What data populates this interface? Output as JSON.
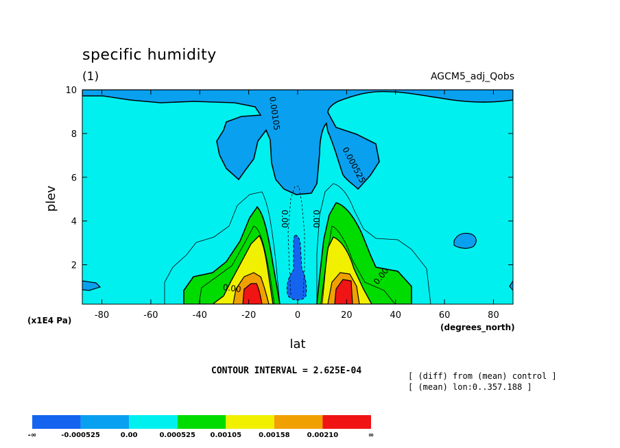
{
  "chart_data": {
    "type": "filled-contour",
    "title": "specific humidity",
    "subtitle": "(1)",
    "dataset": "AGCM5_adj_Qobs",
    "xlabel": "lat",
    "x_units": "(degrees_north)",
    "ylabel": "plev",
    "y_units": "(x1E4 Pa)",
    "xlim": [
      -88,
      88
    ],
    "ylim": [
      10,
      0.2
    ],
    "x_ticks": [
      -80,
      -60,
      -40,
      -20,
      0,
      20,
      40,
      60,
      80
    ],
    "y_ticks": [
      2,
      4,
      6,
      8,
      10
    ],
    "contour_interval_text": "CONTOUR INTERVAL = 2.625E-04",
    "notes": [
      "[ (diff) from (mean) control ]",
      "[ (mean) lon:0..357.188 ]"
    ],
    "contour_labels": [
      {
        "text": "0.00",
        "lat": -27,
        "plev": 0.8,
        "rot": 8
      },
      {
        "text": "0.00",
        "lat": 35,
        "plev": 1.4,
        "rot": -52
      },
      {
        "text": "0.00",
        "lat": -6.5,
        "plev": 4.1,
        "rot": 90
      },
      {
        "text": "0.00",
        "lat": 6.5,
        "plev": 4.1,
        "rot": 90
      },
      {
        "text": "0.000525",
        "lat": 22,
        "plev": 6.5,
        "rot": 62
      },
      {
        "text": "0.00105",
        "lat": -10.5,
        "plev": 8.9,
        "rot": 82
      }
    ],
    "colorbar": {
      "colors": [
        "#1464f0",
        "#0aa0f0",
        "#00f0f0",
        "#00dc00",
        "#f0f000",
        "#f0a000",
        "#f01414"
      ],
      "labels": [
        "-∞",
        "-0.000525",
        "0.00",
        "0.000525",
        "0.00105",
        "0.00158",
        "0.00210",
        "∞"
      ]
    }
  }
}
